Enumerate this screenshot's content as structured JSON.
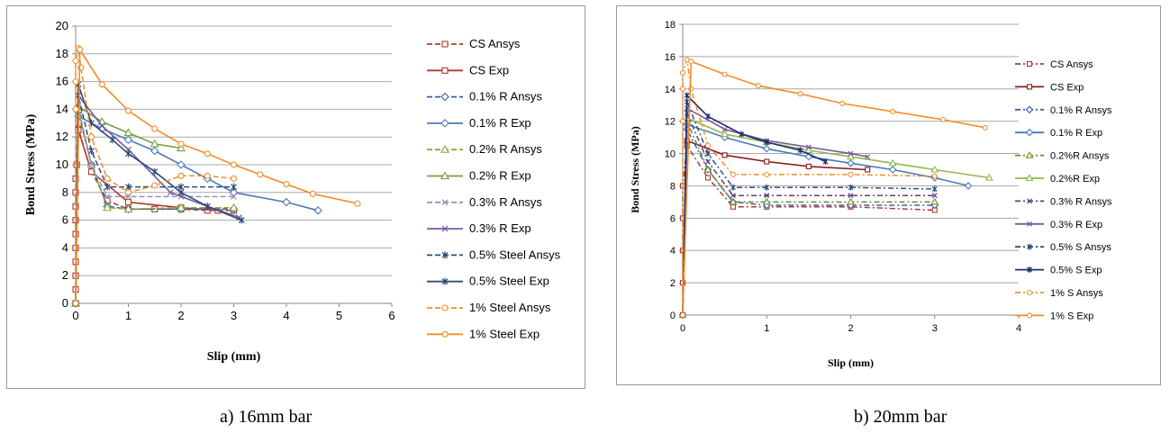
{
  "captions": {
    "a": "a)    16mm bar",
    "b": "b)    20mm bar"
  },
  "chart_data": [
    {
      "type": "line",
      "panel": "a",
      "xlabel": "Slip (mm)",
      "ylabel": "Bond Stress (MPa)",
      "xlim": [
        0,
        6
      ],
      "ylim": [
        0,
        20
      ],
      "xticks": [
        0,
        1,
        2,
        3,
        4,
        5,
        6
      ],
      "yticks": [
        0,
        2,
        4,
        6,
        8,
        10,
        12,
        14,
        16,
        18,
        20
      ],
      "grid": "horizontal",
      "legend": "right",
      "series": [
        {
          "name": "CS Ansys",
          "color": "#b03a2e",
          "dash": "dash",
          "marker": "square",
          "x": [
            0,
            0,
            0,
            0,
            0,
            0,
            0,
            0,
            0,
            0,
            0.02,
            0.05,
            0.3,
            0.6,
            1.0,
            1.5,
            2.0,
            2.5,
            3.0
          ],
          "y": [
            0,
            1,
            2,
            3,
            4,
            5,
            6,
            7,
            8,
            9,
            10,
            12.6,
            9.5,
            7.4,
            6.8,
            6.8,
            6.8,
            6.7,
            6.7
          ]
        },
        {
          "name": "CS Exp",
          "color": "#b03a2e",
          "dash": "solid",
          "marker": "square",
          "x": [
            0,
            0.05,
            0.3,
            1.0,
            2.0,
            2.7
          ],
          "y": [
            0,
            12.5,
            9.5,
            7.3,
            6.9,
            6.7
          ]
        },
        {
          "name": "0.1% R Ansys",
          "color": "#3a5fb5",
          "dash": "dash",
          "marker": "diamond",
          "x": [
            0,
            0.05,
            0.3,
            0.6,
            1.0,
            2.0,
            3.0
          ],
          "y": [
            0,
            13.8,
            10.0,
            7.0,
            6.8,
            6.8,
            6.8
          ]
        },
        {
          "name": "0.1% R Exp",
          "color": "#4a7ab8",
          "dash": "solid",
          "marker": "diamond",
          "x": [
            0,
            0.05,
            0.5,
            1.0,
            1.5,
            2.0,
            2.5,
            3.0,
            4.0,
            4.6
          ],
          "y": [
            0,
            13.5,
            12.6,
            11.8,
            11.0,
            10.0,
            9.0,
            8.0,
            7.3,
            6.7
          ]
        },
        {
          "name": "0.2% R Ansys",
          "color": "#8aab3c",
          "dash": "dash",
          "marker": "triangle",
          "x": [
            0,
            0.05,
            0.3,
            0.6,
            1.0,
            2.0,
            3.0
          ],
          "y": [
            0,
            14.0,
            10.0,
            6.9,
            6.8,
            6.9,
            6.9
          ]
        },
        {
          "name": "0.2% R Exp",
          "color": "#78a03c",
          "dash": "solid",
          "marker": "triangle",
          "x": [
            0,
            0.05,
            0.5,
            1.0,
            1.5,
            2.0
          ],
          "y": [
            0,
            14.2,
            13.1,
            12.3,
            11.5,
            11.2
          ]
        },
        {
          "name": "0.3% R Ansys",
          "color": "#9a8fb8",
          "dash": "dash",
          "marker": "x",
          "x": [
            0,
            0.05,
            0.3,
            0.6,
            1.0,
            2.0,
            3.0
          ],
          "y": [
            0,
            14.2,
            10.0,
            7.7,
            7.7,
            7.7,
            7.7
          ]
        },
        {
          "name": "0.3% R Exp",
          "color": "#7a5aa0",
          "dash": "solid",
          "marker": "x",
          "x": [
            0,
            0.05,
            0.5,
            1.0,
            1.8,
            2.5,
            3.1
          ],
          "y": [
            0,
            15.0,
            12.8,
            11.1,
            8.0,
            7.0,
            6.2
          ]
        },
        {
          "name": "0.5% Steel Ansys",
          "color": "#2e4d7a",
          "dash": "dash",
          "marker": "star",
          "x": [
            0,
            0.05,
            0.3,
            0.6,
            1.0,
            2.0,
            3.0
          ],
          "y": [
            0,
            15.0,
            11.0,
            8.4,
            8.4,
            8.4,
            8.4
          ]
        },
        {
          "name": "0.5% Steel Exp",
          "color": "#2e4d7a",
          "dash": "solid",
          "marker": "star",
          "x": [
            0,
            0.05,
            0.3,
            0.7,
            1.0,
            1.5,
            2.0,
            2.5,
            3.15
          ],
          "y": [
            0,
            15.8,
            13.0,
            11.8,
            10.8,
            9.5,
            8.0,
            7.0,
            6.0
          ]
        },
        {
          "name": "1% Steel Ansys",
          "color": "#f28c28",
          "dash": "dash",
          "marker": "circle",
          "x": [
            0,
            0,
            0,
            0,
            0.05,
            0.1,
            0.3,
            0.6,
            1.0,
            1.5,
            2.0,
            2.5,
            3.0
          ],
          "y": [
            0,
            14.0,
            16.0,
            17.5,
            18.4,
            17.0,
            12.0,
            9.0,
            8.0,
            8.5,
            9.2,
            9.2,
            9.0
          ]
        },
        {
          "name": "1% Steel Exp",
          "color": "#f28c28",
          "dash": "solid",
          "marker": "circle",
          "x": [
            0,
            0.08,
            0.5,
            1.0,
            1.5,
            2.0,
            2.5,
            3.0,
            3.5,
            4.0,
            4.5,
            5.35
          ],
          "y": [
            0,
            18.3,
            15.8,
            13.9,
            12.6,
            11.5,
            10.8,
            10.0,
            9.3,
            8.6,
            7.9,
            7.2
          ]
        }
      ]
    },
    {
      "type": "line",
      "panel": "b",
      "xlabel": "Slip (mm)",
      "ylabel": "Bond Stress (MPa)",
      "xlim": [
        0,
        4
      ],
      "ylim": [
        0,
        18
      ],
      "xticks": [
        0,
        1,
        2,
        3,
        4
      ],
      "yticks": [
        0,
        2,
        4,
        6,
        8,
        10,
        12,
        14,
        16,
        18
      ],
      "grid": "horizontal",
      "legend": "right",
      "series": [
        {
          "name": "CS Ansys",
          "color": "#b03a2e",
          "dash": "dashdot",
          "marker": "square",
          "x": [
            0,
            0,
            0,
            0,
            0,
            0.05,
            0.3,
            0.6,
            1.0,
            2.0,
            3.0
          ],
          "y": [
            0,
            2,
            4,
            6,
            8,
            10.5,
            8.5,
            6.7,
            6.7,
            6.7,
            6.5
          ]
        },
        {
          "name": "CS Exp",
          "color": "#8b1c1c",
          "dash": "solid",
          "marker": "square",
          "x": [
            0,
            0.05,
            0.5,
            1.0,
            1.5,
            2.2
          ],
          "y": [
            0,
            10.8,
            9.9,
            9.5,
            9.2,
            9.0
          ]
        },
        {
          "name": "0.1% R Ansys",
          "color": "#3a5fb5",
          "dash": "dashdot",
          "marker": "diamond",
          "x": [
            0,
            0.05,
            0.3,
            0.6,
            1.0,
            2.0,
            3.0
          ],
          "y": [
            0,
            11.5,
            9.0,
            7.0,
            6.8,
            6.8,
            6.8
          ]
        },
        {
          "name": "0.1% R Exp",
          "color": "#4a7ab8",
          "dash": "solid",
          "marker": "diamond",
          "x": [
            0,
            0.05,
            0.5,
            1.0,
            1.5,
            2.0,
            2.5,
            3.0,
            3.4
          ],
          "y": [
            0,
            11.8,
            11.0,
            10.3,
            9.8,
            9.4,
            9.0,
            8.5,
            8.0
          ]
        },
        {
          "name": "0.2%R Ansys",
          "color": "#6e8b1e",
          "dash": "dashdot",
          "marker": "triangle",
          "x": [
            0,
            0.05,
            0.3,
            0.6,
            1.0,
            2.0,
            3.0
          ],
          "y": [
            0,
            12.0,
            9.0,
            7.0,
            7.0,
            7.0,
            7.0
          ]
        },
        {
          "name": "0.2%R Exp",
          "color": "#8fb84a",
          "dash": "solid",
          "marker": "triangle",
          "x": [
            0,
            0.05,
            0.5,
            1.0,
            1.5,
            2.0,
            2.5,
            3.0,
            3.65
          ],
          "y": [
            0,
            12.2,
            11.2,
            10.7,
            10.2,
            9.8,
            9.4,
            9.0,
            8.5
          ]
        },
        {
          "name": "0.3% R Ansys",
          "color": "#5a3e80",
          "dash": "dashdot",
          "marker": "x",
          "x": [
            0,
            0.05,
            0.3,
            0.6,
            1.0,
            2.0,
            3.0
          ],
          "y": [
            0,
            12.5,
            9.5,
            7.4,
            7.4,
            7.4,
            7.4
          ]
        },
        {
          "name": "0.3% R Exp",
          "color": "#7a5aa0",
          "dash": "solid",
          "marker": "x",
          "x": [
            0,
            0.05,
            0.5,
            1.0,
            1.5,
            2.0,
            2.2
          ],
          "y": [
            0,
            12.8,
            11.5,
            10.8,
            10.4,
            10.0,
            9.8
          ]
        },
        {
          "name": "0.5% S  Ansys",
          "color": "#2e4d7a",
          "dash": "dashdot",
          "marker": "star",
          "x": [
            0,
            0.05,
            0.3,
            0.6,
            1.0,
            2.0,
            3.0
          ],
          "y": [
            0,
            13.2,
            10.0,
            7.9,
            7.9,
            7.9,
            7.8
          ]
        },
        {
          "name": "0.5% S Exp",
          "color": "#1a2f6e",
          "dash": "solid",
          "marker": "star",
          "x": [
            0,
            0.05,
            0.3,
            0.7,
            1.0,
            1.4,
            1.7
          ],
          "y": [
            0,
            13.6,
            12.3,
            11.2,
            10.7,
            10.2,
            9.5
          ]
        },
        {
          "name": "1% S Ansys",
          "color": "#f28c28",
          "dash": "dashdot",
          "marker": "circle",
          "x": [
            0,
            0,
            0,
            0,
            0.05,
            0.1,
            0.3,
            0.6,
            1.0,
            2.0,
            3.0
          ],
          "y": [
            0,
            12.0,
            14.0,
            15.0,
            15.8,
            14.0,
            10.5,
            8.7,
            8.7,
            8.7,
            8.6
          ]
        },
        {
          "name": "1% S Exp",
          "color": "#f28c28",
          "dash": "solid",
          "marker": "circle",
          "x": [
            0,
            0.1,
            0.5,
            0.9,
            1.4,
            1.9,
            2.5,
            3.1,
            3.6
          ],
          "y": [
            0,
            15.7,
            14.9,
            14.2,
            13.7,
            13.1,
            12.6,
            12.1,
            11.6
          ]
        }
      ]
    }
  ]
}
